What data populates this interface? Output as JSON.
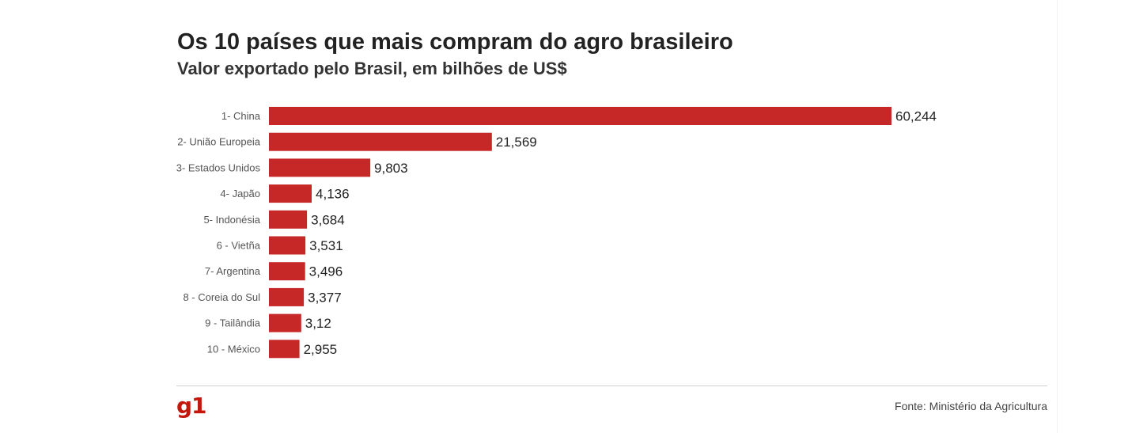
{
  "page": {
    "source": "Fonte: Ministério da Agricultura",
    "logo_text": "g1"
  },
  "colors": {
    "bar": "#c62828",
    "logo": "#c4170c"
  },
  "chart_data": {
    "type": "bar",
    "orientation": "horizontal",
    "title": "Os 10 países que mais compram do agro brasileiro",
    "subtitle": "Valor exportado pelo Brasil, em bilhões de US$",
    "categories": [
      "1- China",
      "2- União Europeia",
      "3- Estados Unidos",
      "4- Japão",
      "5- Indonésia",
      "6 - Vietña",
      "7- Argentina",
      "8 - Coreia do Sul",
      "9 - Tailândia",
      "10 - México"
    ],
    "values": [
      60.244,
      21.569,
      9.803,
      4.136,
      3.684,
      3.531,
      3.496,
      3.377,
      3.12,
      2.955
    ],
    "value_labels": [
      "60,244",
      "21,569",
      "9,803",
      "4,136",
      "3,684",
      "3,531",
      "3,496",
      "3,377",
      "3,12",
      "2,955"
    ],
    "xlim": [
      0,
      60.244
    ],
    "grid": false,
    "legend": "none"
  }
}
